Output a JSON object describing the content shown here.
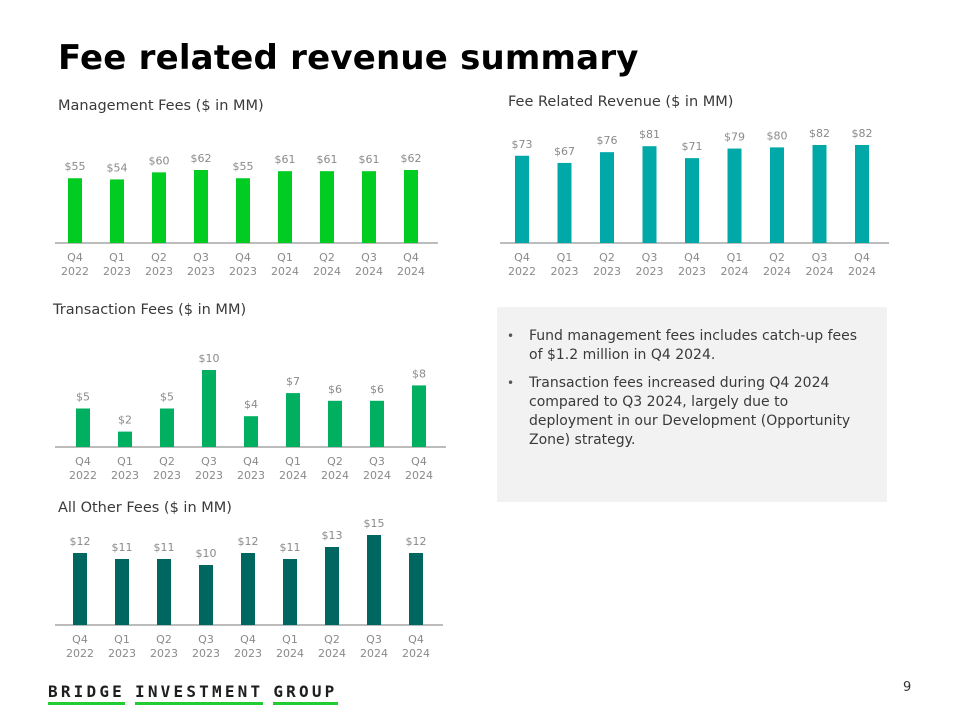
{
  "page": {
    "title": "Fee related revenue summary",
    "page_number": "9"
  },
  "notes": {
    "bullets": [
      "Fund management fees includes catch-up fees of $1.2 million in Q4 2024.",
      "Transaction fees increased during Q4 2024 compared to Q3 2024, largely due to deployment in our Development (Opportunity Zone) strategy."
    ],
    "bullet_glyph": "•"
  },
  "footer": {
    "logo_words": [
      "BRIDGE",
      "INVESTMENT",
      "GROUP"
    ],
    "logo_underline_color": "#22cc33"
  },
  "chart_data": [
    {
      "id": "management-fees",
      "type": "bar",
      "title": "Management Fees ($ in MM)",
      "categories": [
        [
          "Q4",
          "2022"
        ],
        [
          "Q1",
          "2023"
        ],
        [
          "Q2",
          "2023"
        ],
        [
          "Q3",
          "2023"
        ],
        [
          "Q4",
          "2023"
        ],
        [
          "Q1",
          "2024"
        ],
        [
          "Q2",
          "2024"
        ],
        [
          "Q3",
          "2024"
        ],
        [
          "Q4",
          "2024"
        ]
      ],
      "values": [
        55,
        54,
        60,
        62,
        55,
        61,
        61,
        61,
        62
      ],
      "labels": [
        "$55",
        "$54",
        "$60",
        "$62",
        "$55",
        "$61",
        "$61",
        "$61",
        "$62"
      ],
      "color": "#00cc22",
      "xlabel": "",
      "ylabel": "",
      "ylim": [
        0,
        62
      ],
      "grid": false,
      "legend": "none"
    },
    {
      "id": "fee-related-revenue",
      "type": "bar",
      "title": "Fee Related Revenue ($ in MM)",
      "categories": [
        [
          "Q4",
          "2022"
        ],
        [
          "Q1",
          "2023"
        ],
        [
          "Q2",
          "2023"
        ],
        [
          "Q3",
          "2023"
        ],
        [
          "Q4",
          "2023"
        ],
        [
          "Q1",
          "2024"
        ],
        [
          "Q2",
          "2024"
        ],
        [
          "Q3",
          "2024"
        ],
        [
          "Q4",
          "2024"
        ]
      ],
      "values": [
        73,
        67,
        76,
        81,
        71,
        79,
        80,
        82,
        82
      ],
      "labels": [
        "$73",
        "$67",
        "$76",
        "$81",
        "$71",
        "$79",
        "$80",
        "$82",
        "$82"
      ],
      "color": "#00a8a8",
      "xlabel": "",
      "ylabel": "",
      "ylim": [
        0,
        82
      ],
      "grid": false,
      "legend": "none"
    },
    {
      "id": "transaction-fees",
      "type": "bar",
      "title": "Transaction Fees ($ in MM)",
      "categories": [
        [
          "Q4",
          "2022"
        ],
        [
          "Q1",
          "2023"
        ],
        [
          "Q2",
          "2023"
        ],
        [
          "Q3",
          "2023"
        ],
        [
          "Q4",
          "2023"
        ],
        [
          "Q1",
          "2024"
        ],
        [
          "Q2",
          "2024"
        ],
        [
          "Q3",
          "2024"
        ],
        [
          "Q4",
          "2024"
        ]
      ],
      "values": [
        5,
        2,
        5,
        10,
        4,
        7,
        6,
        6,
        8
      ],
      "labels": [
        "$5",
        "$2",
        "$5",
        "$10",
        "$4",
        "$7",
        "$6",
        "$6",
        "$8"
      ],
      "color": "#00b060",
      "xlabel": "",
      "ylabel": "",
      "ylim": [
        0,
        10
      ],
      "grid": false,
      "legend": "none"
    },
    {
      "id": "all-other-fees",
      "type": "bar",
      "title": "All Other Fees ($ in MM)",
      "categories": [
        [
          "Q4",
          "2022"
        ],
        [
          "Q1",
          "2023"
        ],
        [
          "Q2",
          "2023"
        ],
        [
          "Q3",
          "2023"
        ],
        [
          "Q4",
          "2023"
        ],
        [
          "Q1",
          "2024"
        ],
        [
          "Q2",
          "2024"
        ],
        [
          "Q3",
          "2024"
        ],
        [
          "Q4",
          "2024"
        ]
      ],
      "values": [
        12,
        11,
        11,
        10,
        12,
        11,
        13,
        15,
        12
      ],
      "labels": [
        "$12",
        "$11",
        "$11",
        "$10",
        "$12",
        "$11",
        "$13",
        "$15",
        "$12"
      ],
      "color": "#006660",
      "xlabel": "",
      "ylabel": "",
      "ylim": [
        0,
        15
      ],
      "grid": false,
      "legend": "none"
    }
  ]
}
